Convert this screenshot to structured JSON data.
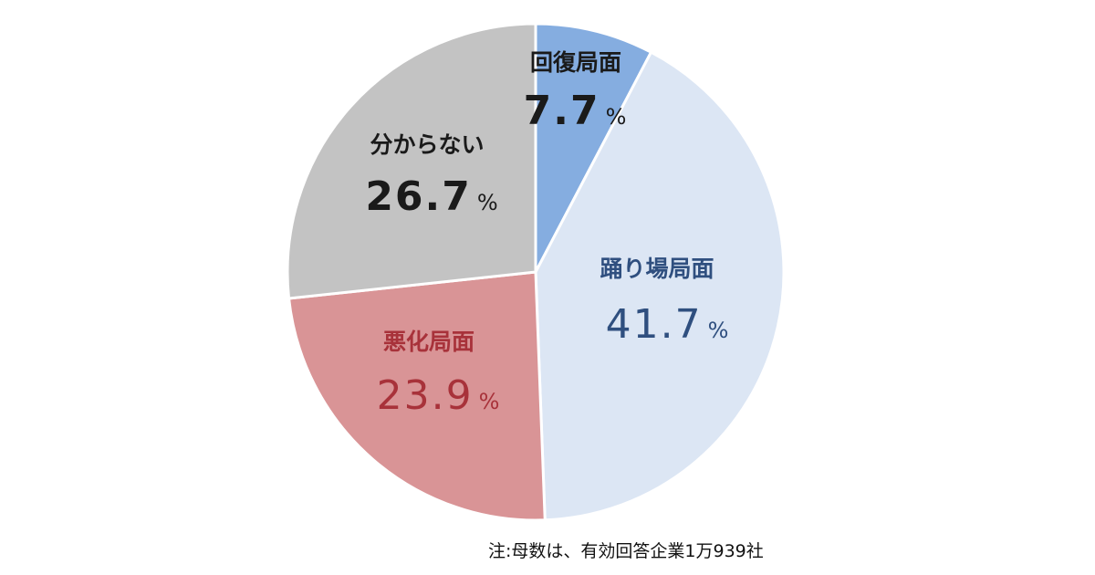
{
  "chart_data": {
    "type": "pie",
    "title": "",
    "unit": "%",
    "start_angle_deg": 0,
    "direction": "clockwise",
    "legend": "none",
    "slices": [
      {
        "label": "回復局面",
        "value": 7.7,
        "display": "7.7",
        "color": "#85ade0",
        "label_color": "#1a1a1a"
      },
      {
        "label": "踊り場局面",
        "value": 41.7,
        "display": "41.7",
        "color": "#dce6f4",
        "label_color": "#2f4f7f"
      },
      {
        "label": "悪化局面",
        "value": 23.9,
        "display": "23.9",
        "color": "#d99496",
        "label_color": "#a8323a"
      },
      {
        "label": "分からない",
        "value": 26.7,
        "display": "26.7",
        "color": "#c3c3c3",
        "label_color": "#1a1a1a"
      }
    ]
  },
  "note": "注:母数は、有効回答企業1万939社"
}
